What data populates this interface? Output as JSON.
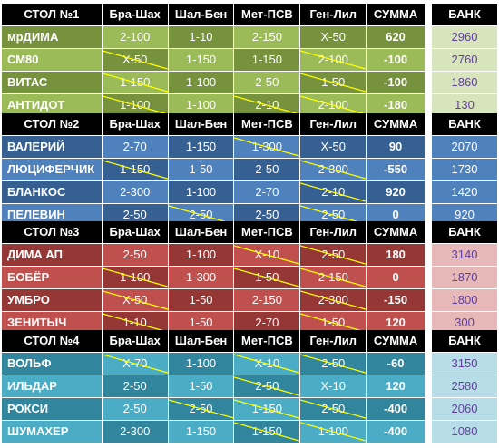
{
  "colors": {
    "slash": "#ffff00"
  },
  "columns": [
    "Бра-Шах",
    "Шал-Бен",
    "Мет-ПСВ",
    "Ген-Лил",
    "СУММА"
  ],
  "bank_header": "БАНК",
  "tables": [
    {
      "title": "СТОЛ №1",
      "rows": [
        {
          "name": "мрДИМА",
          "cells": [
            "2-100",
            "1-10",
            "2-150",
            "X-50"
          ],
          "crossed": [
            false,
            false,
            false,
            false
          ],
          "sum": "620",
          "bank": "2960"
        },
        {
          "name": "СМ80",
          "cells": [
            "X-50",
            "1-150",
            "1-150",
            "2-100"
          ],
          "crossed": [
            true,
            false,
            false,
            true
          ],
          "sum": "-100",
          "bank": "2760"
        },
        {
          "name": "ВИТАС",
          "cells": [
            "1-150",
            "1-100",
            "2-50",
            "1-50"
          ],
          "crossed": [
            true,
            false,
            false,
            true
          ],
          "sum": "-100",
          "bank": "1860"
        },
        {
          "name": "АНТИДОТ",
          "cells": [
            "1-100",
            "1-100",
            "2-10",
            "2-100"
          ],
          "crossed": [
            true,
            false,
            true,
            true
          ],
          "sum": "-180",
          "bank": "130"
        }
      ]
    },
    {
      "title": "СТОЛ №2",
      "rows": [
        {
          "name": "ВАЛЕРИЙ",
          "cells": [
            "2-70",
            "1-150",
            "1-300",
            "X-50"
          ],
          "crossed": [
            false,
            false,
            true,
            false
          ],
          "sum": "90",
          "bank": "2070"
        },
        {
          "name": "ЛЮЦИФЕРЧИК",
          "cells": [
            "1-150",
            "1-50",
            "2-50",
            "2-300"
          ],
          "crossed": [
            true,
            false,
            false,
            true
          ],
          "sum": "-550",
          "bank": "1730"
        },
        {
          "name": "БЛАНКОС",
          "cells": [
            "2-300",
            "1-100",
            "2-70",
            "2-10"
          ],
          "crossed": [
            false,
            false,
            false,
            true
          ],
          "sum": "920",
          "bank": "1420"
        },
        {
          "name": "ПЕЛЕВИН",
          "cells": [
            "2-50",
            "2-50",
            "2-50",
            "2-50"
          ],
          "crossed": [
            false,
            true,
            false,
            true
          ],
          "sum": "0",
          "bank": "920"
        }
      ]
    },
    {
      "title": "СТОЛ №3",
      "rows": [
        {
          "name": "ДИМА АП",
          "cells": [
            "2-50",
            "1-100",
            "X-10",
            "2-50"
          ],
          "crossed": [
            false,
            false,
            true,
            true
          ],
          "sum": "180",
          "bank": "3140"
        },
        {
          "name": "БОБЁР",
          "cells": [
            "1-100",
            "1-300",
            "1-50",
            "2-150"
          ],
          "crossed": [
            true,
            false,
            true,
            true
          ],
          "sum": "0",
          "bank": "1870"
        },
        {
          "name": "УМБРО",
          "cells": [
            "X-50",
            "1-50",
            "2-150",
            "2-300"
          ],
          "crossed": [
            true,
            false,
            false,
            true
          ],
          "sum": "-150",
          "bank": "1800"
        },
        {
          "name": "ЗЕНИТЫЧ",
          "cells": [
            "1-10",
            "1-50",
            "2-70",
            "1-50"
          ],
          "crossed": [
            true,
            false,
            false,
            true
          ],
          "sum": "120",
          "bank": "300"
        }
      ]
    },
    {
      "title": "СТОЛ №4",
      "rows": [
        {
          "name": "ВОЛЬФ",
          "cells": [
            "X-70",
            "1-100",
            "X-10",
            "2-50"
          ],
          "crossed": [
            true,
            false,
            true,
            true
          ],
          "sum": "-60",
          "bank": "3150"
        },
        {
          "name": "ИЛЬДАР",
          "cells": [
            "2-50",
            "1-50",
            "2-50",
            "X-10"
          ],
          "crossed": [
            false,
            false,
            true,
            false
          ],
          "sum": "120",
          "bank": "2580"
        },
        {
          "name": "РОКСИ",
          "cells": [
            "2-50",
            "2-50",
            "1-150",
            "2-50"
          ],
          "crossed": [
            false,
            true,
            true,
            true
          ],
          "sum": "-400",
          "bank": "2060"
        },
        {
          "name": "ШУМАХЕР",
          "cells": [
            "2-300",
            "1-150",
            "1-150",
            "1-100"
          ],
          "crossed": [
            false,
            false,
            true,
            true
          ],
          "sum": "-400",
          "bank": "1080"
        }
      ]
    }
  ]
}
